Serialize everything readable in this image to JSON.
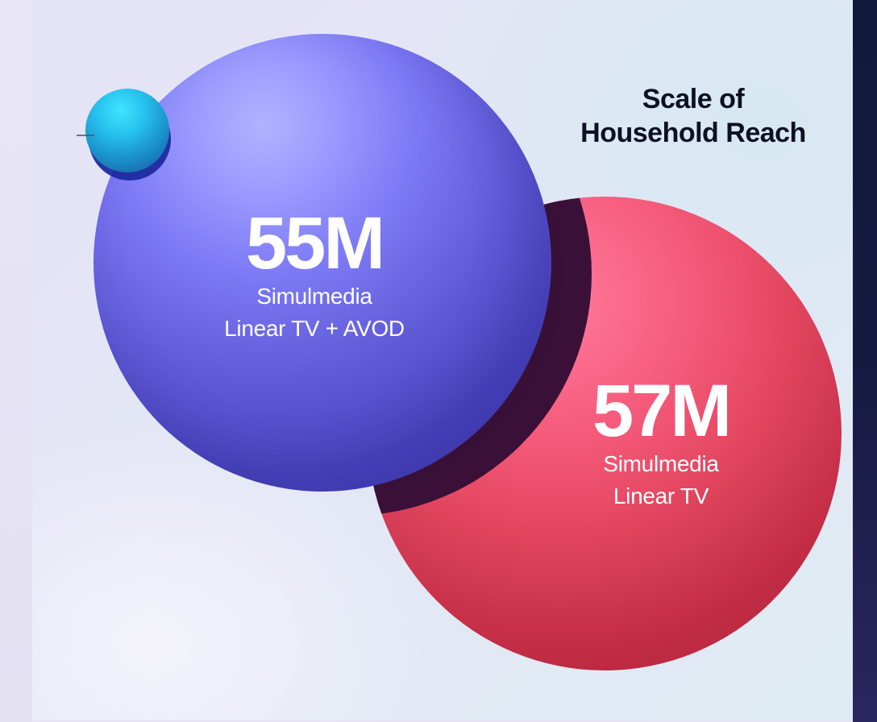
{
  "title": {
    "line1": "Scale of",
    "line2": "Household Reach"
  },
  "stats": [
    {
      "value": "55M",
      "label_line1": "Simulmedia",
      "label_line2": "Linear TV + AVOD",
      "color": "#5f5ad6"
    },
    {
      "value": "57M",
      "label_line1": "Simulmedia",
      "label_line2": "Linear TV",
      "color": "#e2465f"
    }
  ],
  "colors": {
    "accent_blue": "#5f5ad6",
    "accent_red": "#e2465f",
    "accent_cyan": "#27c3ee",
    "title_text": "#0d1024",
    "overlap": "#3a1038",
    "right_frame": "#161a40"
  }
}
